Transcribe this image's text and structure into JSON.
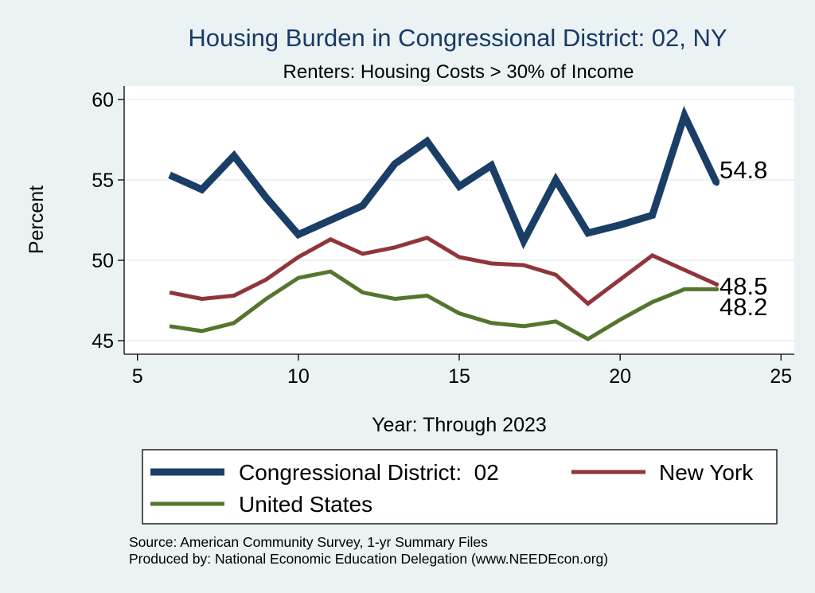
{
  "chart_data": {
    "type": "line",
    "title": "Housing Burden in Congressional District:  02, NY",
    "subtitle": "Renters: Housing Costs > 30% of Income",
    "xlabel": "Year: Through 2023",
    "ylabel": "Percent",
    "xlim": [
      5,
      25
    ],
    "ylim": [
      45,
      60
    ],
    "x_ticks": [
      5,
      10,
      15,
      20,
      25
    ],
    "y_ticks": [
      45,
      50,
      55,
      60
    ],
    "x_tick_labels": [
      "5",
      "10",
      "15",
      "20",
      "25"
    ],
    "y_tick_labels": [
      "45",
      "50",
      "55",
      "60"
    ],
    "grid": true,
    "legend_position": "bottom",
    "series": [
      {
        "name": "Congressional District:  02",
        "color": "#1a3e66",
        "x": [
          6,
          7,
          8,
          9,
          10,
          11,
          12,
          13,
          14,
          15,
          16,
          17,
          18,
          19,
          20,
          21,
          22,
          23
        ],
        "values": [
          55.3,
          54.4,
          56.5,
          53.9,
          51.6,
          52.5,
          53.4,
          56.0,
          57.4,
          54.6,
          55.9,
          51.2,
          55.0,
          51.7,
          52.2,
          52.8,
          59.0,
          54.8
        ],
        "end_label": "54.8"
      },
      {
        "name": "New York",
        "color": "#90353b",
        "x": [
          6,
          7,
          8,
          9,
          10,
          11,
          12,
          13,
          14,
          15,
          16,
          17,
          18,
          19,
          20,
          21,
          22,
          23
        ],
        "values": [
          48.0,
          47.6,
          47.8,
          48.8,
          50.2,
          51.3,
          50.4,
          50.8,
          51.4,
          50.2,
          49.8,
          49.7,
          49.1,
          47.3,
          48.8,
          50.3,
          49.4,
          48.5
        ],
        "end_label": "48.5"
      },
      {
        "name": "United States",
        "color": "#55752f",
        "x": [
          6,
          7,
          8,
          9,
          10,
          11,
          12,
          13,
          14,
          15,
          16,
          17,
          18,
          19,
          20,
          21,
          22,
          23
        ],
        "values": [
          45.9,
          45.6,
          46.1,
          47.6,
          48.9,
          49.3,
          48.0,
          47.6,
          47.8,
          46.7,
          46.1,
          45.9,
          46.2,
          45.1,
          46.3,
          47.4,
          48.2,
          48.2
        ],
        "end_label": "48.2"
      }
    ],
    "source_lines": [
      "Source: American Community Survey, 1-yr Summary Files",
      "Produced by: National Economic Education Delegation (www.NEEDEcon.org)"
    ]
  }
}
